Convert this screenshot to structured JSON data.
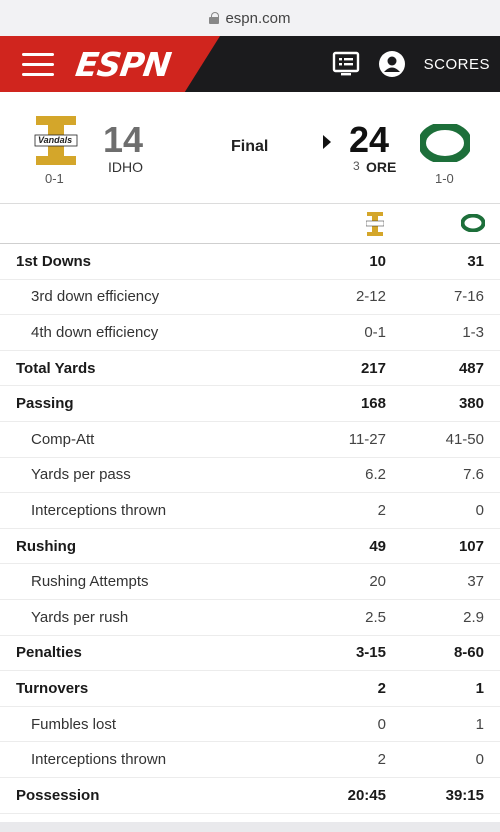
{
  "browser": {
    "url": "espn.com"
  },
  "nav": {
    "logo": "ESPN",
    "scores_label": "SCORES"
  },
  "colors": {
    "brand_red": "#d0251e",
    "nav_dark": "#1b1b1d",
    "idaho_gold": "#d4a62a",
    "oregon_green": "#1d6f3a"
  },
  "game": {
    "status": "Final",
    "away": {
      "score": "14",
      "abbr": "IDHO",
      "record": "0-1",
      "logo_text": "Vandals"
    },
    "home": {
      "score": "24",
      "abbr": "ORE",
      "rank": "3",
      "record": "1-0",
      "logo": "O"
    }
  },
  "stats": [
    {
      "label": "1st Downs",
      "away": "10",
      "home": "31",
      "type": "main"
    },
    {
      "label": "3rd down efficiency",
      "away": "2-12",
      "home": "7-16",
      "type": "sub"
    },
    {
      "label": "4th down efficiency",
      "away": "0-1",
      "home": "1-3",
      "type": "sub"
    },
    {
      "label": "Total Yards",
      "away": "217",
      "home": "487",
      "type": "main"
    },
    {
      "label": "Passing",
      "away": "168",
      "home": "380",
      "type": "main"
    },
    {
      "label": "Comp-Att",
      "away": "11-27",
      "home": "41-50",
      "type": "sub"
    },
    {
      "label": "Yards per pass",
      "away": "6.2",
      "home": "7.6",
      "type": "sub"
    },
    {
      "label": "Interceptions thrown",
      "away": "2",
      "home": "0",
      "type": "sub"
    },
    {
      "label": "Rushing",
      "away": "49",
      "home": "107",
      "type": "main"
    },
    {
      "label": "Rushing Attempts",
      "away": "20",
      "home": "37",
      "type": "sub"
    },
    {
      "label": "Yards per rush",
      "away": "2.5",
      "home": "2.9",
      "type": "sub"
    },
    {
      "label": "Penalties",
      "away": "3-15",
      "home": "8-60",
      "type": "main"
    },
    {
      "label": "Turnovers",
      "away": "2",
      "home": "1",
      "type": "main"
    },
    {
      "label": "Fumbles lost",
      "away": "0",
      "home": "1",
      "type": "sub"
    },
    {
      "label": "Interceptions thrown",
      "away": "2",
      "home": "0",
      "type": "sub"
    },
    {
      "label": "Possession",
      "away": "20:45",
      "home": "39:15",
      "type": "main"
    }
  ]
}
